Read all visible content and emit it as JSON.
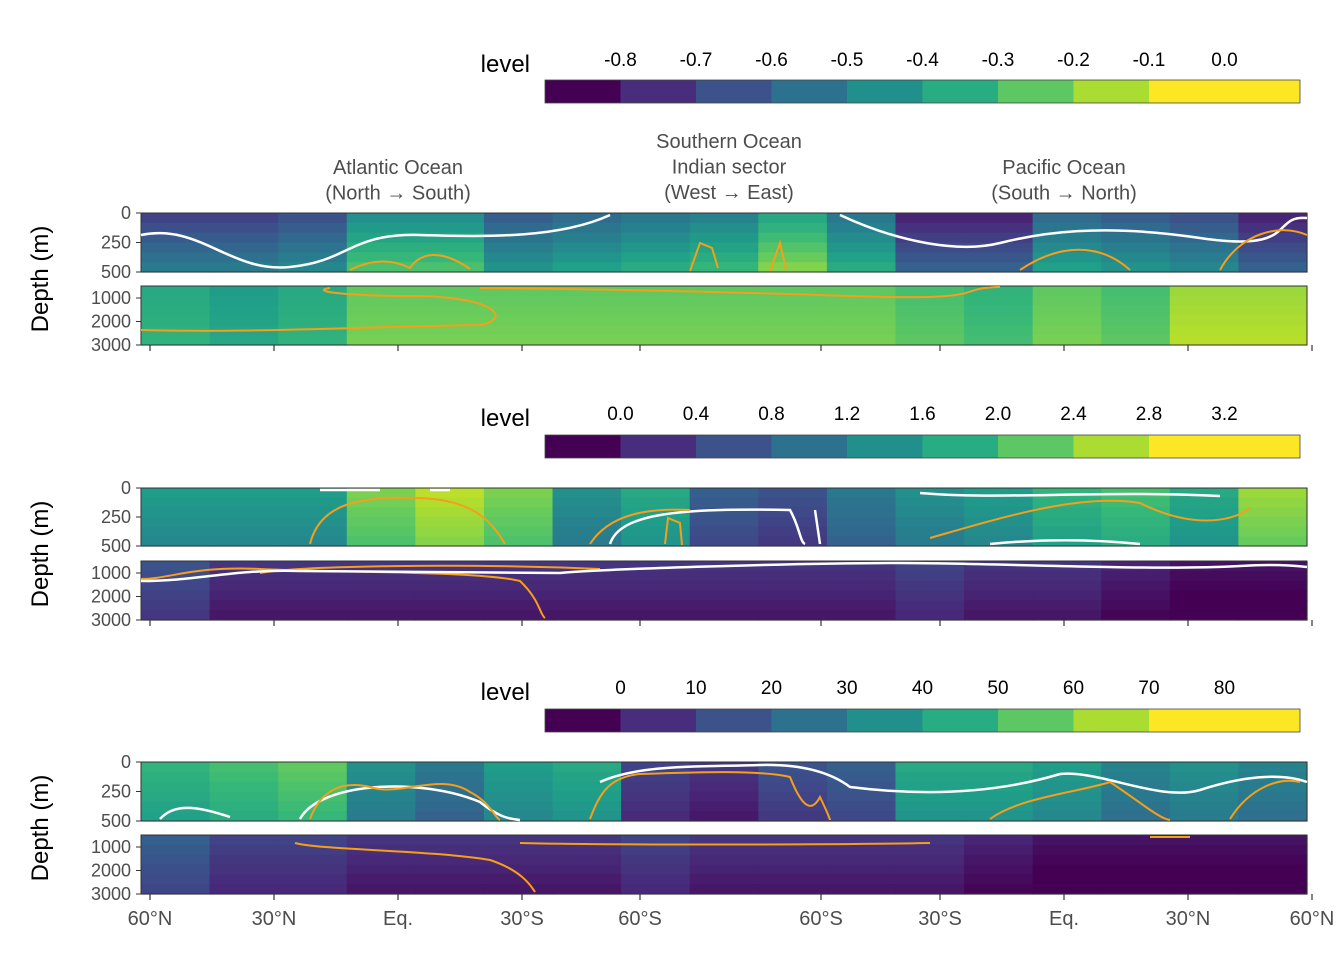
{
  "chart_data": [
    {
      "type": "heatmap",
      "legend": {
        "title": "level",
        "breaks": [
          "-0.8",
          "-0.7",
          "-0.6",
          "-0.5",
          "-0.4",
          "-0.3",
          "-0.2",
          "-0.1",
          "0.0"
        ],
        "colors": [
          "#440154",
          "#472d7b",
          "#3b528b",
          "#2c728e",
          "#21908d",
          "#27ad81",
          "#5dc863",
          "#aadc32",
          "#fde725"
        ]
      },
      "ylabel": "Depth (m)",
      "yticks_upper": [
        "0",
        "250",
        "500"
      ],
      "yticks_lower": [
        "1000",
        "2000",
        "3000"
      ],
      "upper_ylim": [
        0,
        500
      ],
      "lower_ylim": [
        500,
        3000
      ],
      "columns": [
        [
          0.2,
          0.2,
          0.25,
          0.5,
          0.5,
          0.3,
          0.35,
          0.4,
          0.45,
          0.6,
          0.4,
          0.1,
          0.1,
          0.35,
          0.3,
          0.25,
          0.1
        ],
        [
          0.6,
          0.55,
          0.6,
          0.75,
          0.75,
          0.75,
          0.75,
          0.75,
          0.75,
          0.75,
          0.75,
          0.7,
          0.65,
          0.75,
          0.7,
          0.85,
          0.85
        ]
      ],
      "section_labels": [
        {
          "lines": [
            "Atlantic Ocean",
            "(North → South)"
          ]
        },
        {
          "lines": [
            "Southern Ocean",
            "Indian sector",
            "(West → East)"
          ]
        },
        {
          "lines": [
            "Pacific Ocean",
            "(South → North)"
          ]
        }
      ]
    },
    {
      "type": "heatmap",
      "legend": {
        "title": "level",
        "breaks": [
          "0.0",
          "0.4",
          "0.8",
          "1.2",
          "1.6",
          "2.0",
          "2.4",
          "2.8",
          "3.2"
        ],
        "colors": [
          "#440154",
          "#472d7b",
          "#3b528b",
          "#2c728e",
          "#21908d",
          "#27ad81",
          "#5dc863",
          "#aadc32",
          "#fde725"
        ]
      },
      "ylabel": "Depth (m)",
      "yticks_upper": [
        "0",
        "250",
        "500"
      ],
      "yticks_lower": [
        "1000",
        "2000",
        "3000"
      ],
      "upper_ylim": [
        0,
        500
      ],
      "lower_ylim": [
        500,
        3000
      ],
      "columns": [
        [
          0.55,
          0.55,
          0.55,
          0.8,
          0.9,
          0.8,
          0.5,
          0.6,
          0.3,
          0.25,
          0.4,
          0.5,
          0.55,
          0.65,
          0.7,
          0.6,
          0.85
        ],
        [
          0.25,
          0.15,
          0.15,
          0.15,
          0.15,
          0.15,
          0.15,
          0.15,
          0.15,
          0.15,
          0.15,
          0.2,
          0.15,
          0.15,
          0.1,
          0.05,
          0.05
        ]
      ]
    },
    {
      "type": "heatmap",
      "legend": {
        "title": "level",
        "breaks": [
          "0",
          "10",
          "20",
          "30",
          "40",
          "50",
          "60",
          "70",
          "80"
        ],
        "colors": [
          "#440154",
          "#472d7b",
          "#3b528b",
          "#2c728e",
          "#21908d",
          "#27ad81",
          "#5dc863",
          "#aadc32",
          "#fde725"
        ]
      },
      "ylabel": "Depth (m)",
      "yticks_upper": [
        "0",
        "250",
        "500"
      ],
      "yticks_lower": [
        "1000",
        "2000",
        "3000"
      ],
      "upper_ylim": [
        0,
        500
      ],
      "lower_ylim": [
        500,
        3000
      ],
      "columns": [
        [
          0.65,
          0.7,
          0.75,
          0.5,
          0.4,
          0.55,
          0.6,
          0.2,
          0.15,
          0.25,
          0.3,
          0.6,
          0.6,
          0.55,
          0.45,
          0.5,
          0.45
        ],
        [
          0.3,
          0.2,
          0.2,
          0.15,
          0.15,
          0.15,
          0.15,
          0.2,
          0.15,
          0.15,
          0.15,
          0.15,
          0.1,
          0.05,
          0.05,
          0.05,
          0.05
        ]
      ]
    }
  ],
  "x_axis": {
    "ticks": [
      "60°N",
      "30°N",
      "Eq.",
      "30°S",
      "60°S",
      "60°S",
      "30°S",
      "Eq.",
      "30°N",
      "60°N"
    ]
  },
  "contours": {
    "white_color": "#ffffff",
    "orange_color": "#f59f1a"
  }
}
